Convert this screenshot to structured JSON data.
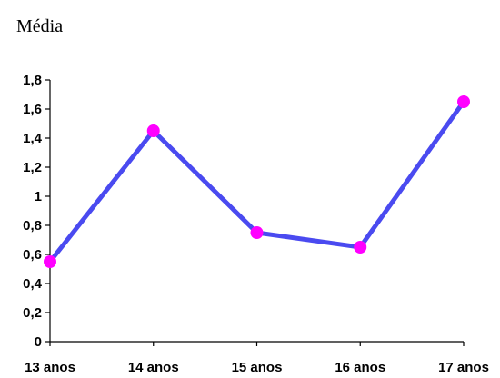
{
  "chart_data": {
    "type": "line",
    "title": "Média",
    "xlabel": "",
    "ylabel": "",
    "categories": [
      "13 anos",
      "14 anos",
      "15 anos",
      "16 anos",
      "17 anos"
    ],
    "series": [
      {
        "values": [
          0.55,
          1.45,
          0.75,
          0.65,
          1.65
        ]
      }
    ],
    "ylim": [
      0,
      1.8
    ],
    "y_ticks": [
      0,
      0.2,
      0.4,
      0.6,
      0.8,
      1,
      1.2,
      1.4,
      1.6,
      1.8
    ],
    "y_tick_labels": [
      "0",
      "0,2",
      "0,4",
      "0,6",
      "0,8",
      "1",
      "1,2",
      "1,4",
      "1,6",
      "1,8"
    ],
    "grid": false,
    "colors": {
      "line": "#4a4af0",
      "marker": "#ff00ff"
    }
  }
}
